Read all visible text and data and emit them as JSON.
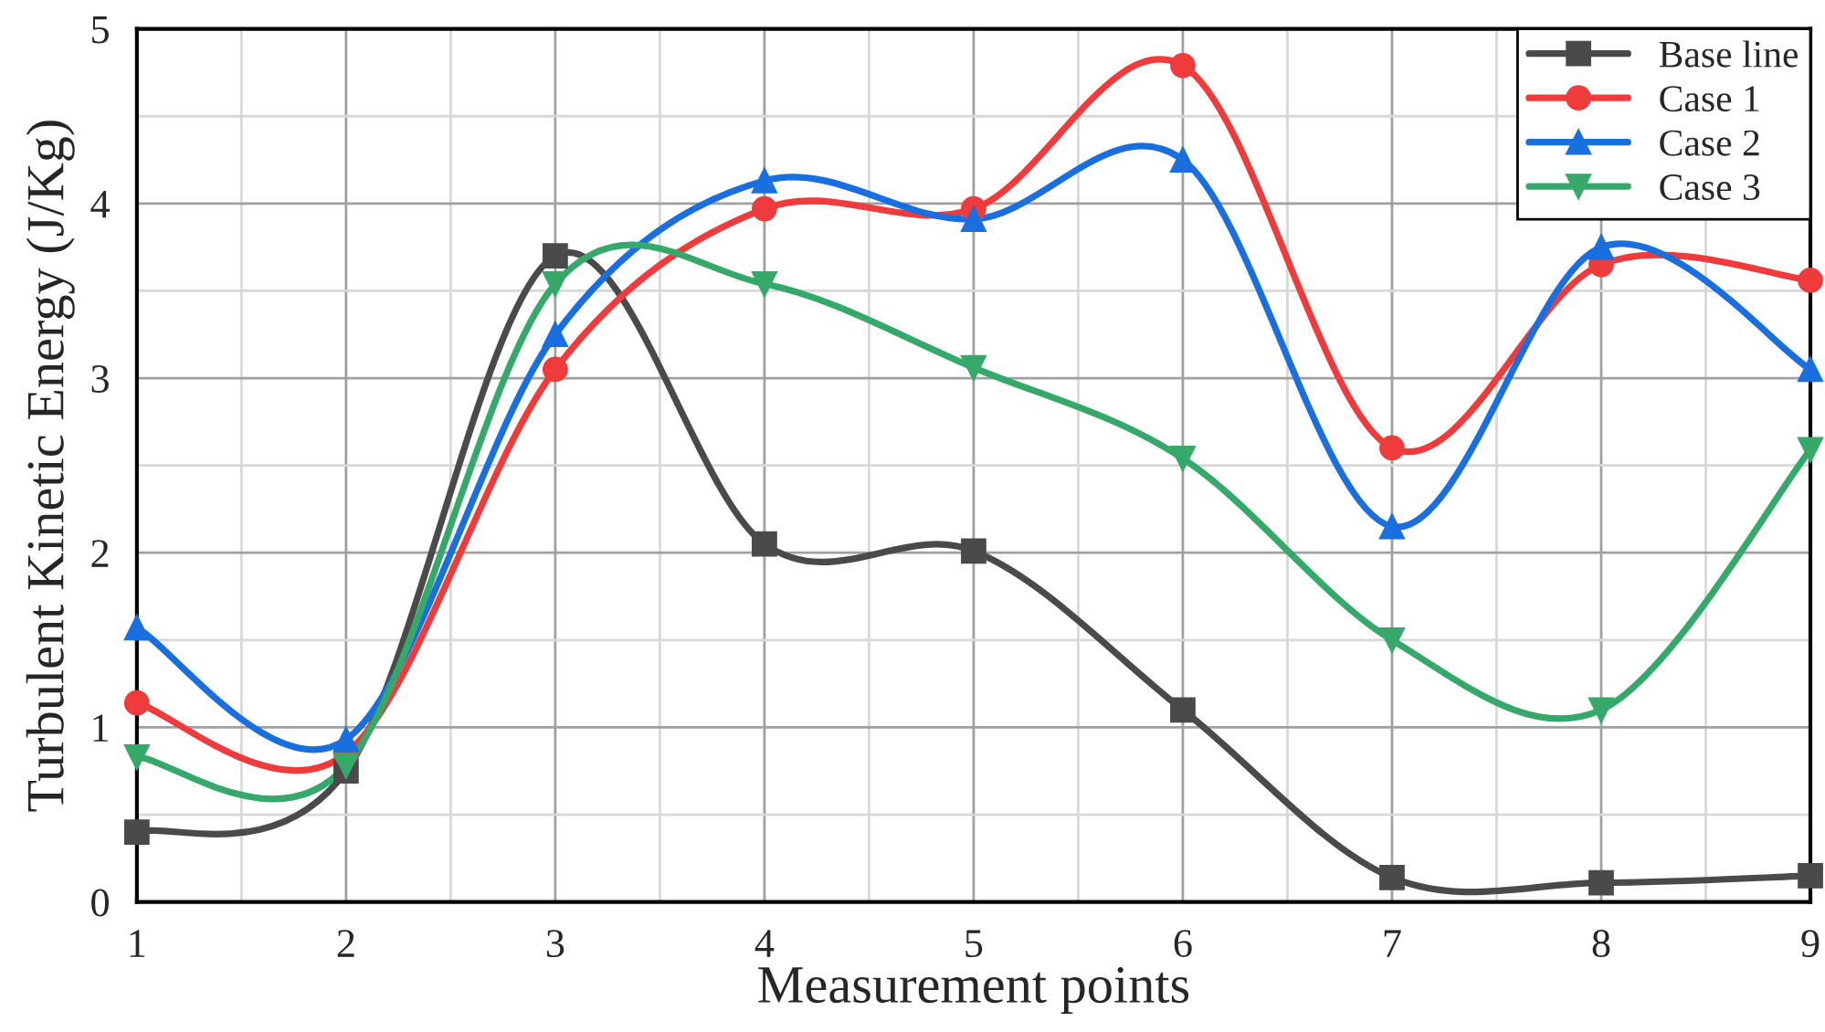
{
  "chart_data": {
    "type": "line",
    "xlabel": "Measurement points",
    "ylabel": "Turbulent Kinetic Energy (J/Kg)",
    "x": [
      1,
      2,
      3,
      4,
      5,
      6,
      7,
      8,
      9
    ],
    "series": [
      {
        "name": "Base line",
        "color": "#4a4a4a",
        "marker": "square",
        "values": [
          0.4,
          0.75,
          3.7,
          2.05,
          2.01,
          1.1,
          0.14,
          0.11,
          0.15
        ]
      },
      {
        "name": "Case 1",
        "color": "#ef3b3b",
        "marker": "circle",
        "values": [
          1.14,
          0.85,
          3.05,
          3.97,
          3.97,
          4.79,
          2.6,
          3.65,
          3.56
        ]
      },
      {
        "name": "Case 2",
        "color": "#1a6fe0",
        "marker": "triangle",
        "values": [
          1.57,
          0.93,
          3.25,
          4.13,
          3.91,
          4.25,
          2.15,
          3.75,
          3.05
        ]
      },
      {
        "name": "Case 3",
        "color": "#35a96a",
        "marker": "triangle_down",
        "values": [
          0.83,
          0.78,
          3.54,
          3.54,
          3.06,
          2.54,
          1.5,
          1.1,
          2.59
        ]
      }
    ],
    "xlim": [
      1,
      9
    ],
    "xticks": [
      1,
      2,
      3,
      4,
      5,
      6,
      7,
      8,
      9
    ],
    "ylim": [
      0,
      5
    ],
    "yticks": [
      0,
      1,
      2,
      3,
      4,
      5
    ],
    "grid": true,
    "legend": "top right",
    "line_style": "solid"
  }
}
